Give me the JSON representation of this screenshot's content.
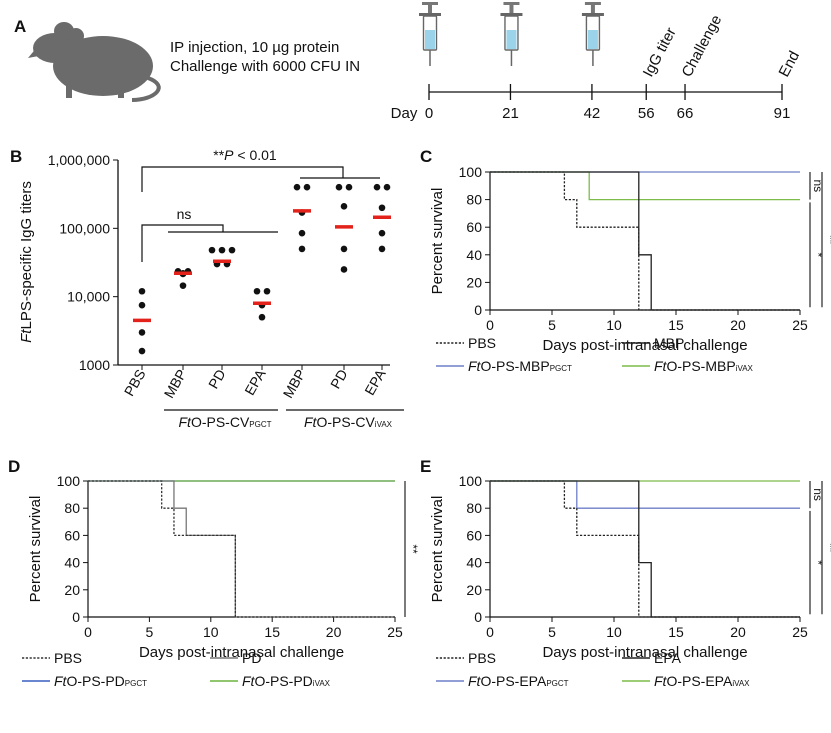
{
  "figure": {
    "panel_a": {
      "letter": "A",
      "protocol_line1": "IP injection, 10 µg protein",
      "protocol_line2": "Challenge with 6000 CFU IN",
      "timeline_label": "Day",
      "days": [
        0,
        21,
        42,
        56,
        66,
        91
      ],
      "injection_days": [
        0,
        21,
        42
      ],
      "events": [
        {
          "day": 56,
          "label": "IgG titer"
        },
        {
          "day": 66,
          "label": "Challenge"
        },
        {
          "day": 91,
          "label": "End"
        }
      ]
    },
    "panel_b": {
      "letter": "B",
      "ylabel_prefix": "Ft",
      "ylabel_rest": "LPS-specific IgG titers",
      "yticks": [
        1000,
        10000,
        100000,
        1000000
      ],
      "ytick_labels": [
        "1000",
        "10,000",
        "100,000",
        "1,000,000"
      ],
      "group_pgct_prefix": "Ft",
      "group_pgct_main": "O-PS-CV",
      "group_pgct_sub": "PGCT",
      "group_ivax_prefix": "Ft",
      "group_ivax_main": "O-PS-CV",
      "group_ivax_sub": "iVAX",
      "sig_label_prefix": "**",
      "sig_label_p": "P",
      "sig_label_rest": " < 0.01",
      "ns_label": "ns"
    },
    "panel_c": {
      "letter": "C",
      "sig_labels": [
        "ns",
        "*",
        "**"
      ]
    },
    "panel_d": {
      "letter": "D",
      "sig_labels": [
        "**"
      ]
    },
    "panel_e": {
      "letter": "E",
      "sig_labels": [
        "ns",
        "*",
        "**"
      ]
    },
    "survival_axes": {
      "xlabel": "Days post-intranasal challenge",
      "ylabel": "Percent survival",
      "xticks": [
        0,
        5,
        10,
        15,
        20,
        25
      ],
      "yticks": [
        0,
        20,
        40,
        60,
        80,
        100
      ]
    }
  },
  "chart_data": [
    {
      "type": "scatter",
      "panel": "B",
      "yscale": "log",
      "ylim": [
        1000,
        1000000
      ],
      "ylabel": "FtLPS-specific IgG titers",
      "categories": [
        "PBS",
        "MBP",
        "PD",
        "EPA",
        "MBP",
        "PD",
        "EPA"
      ],
      "groups": [
        {
          "label": "FtO-PS-CVPGCT",
          "categories": [
            "MBP",
            "PD",
            "EPA"
          ]
        },
        {
          "label": "FtO-PS-CViVAX",
          "categories": [
            "MBP",
            "PD",
            "EPA"
          ]
        }
      ],
      "points": [
        [
          12000,
          7500,
          3000,
          1600
        ],
        [
          23500,
          23500,
          22000,
          21500,
          14500
        ],
        [
          48000,
          48000,
          48000,
          30000,
          30000
        ],
        [
          12000,
          12000,
          7500,
          5000
        ],
        [
          400000,
          400000,
          170000,
          85000,
          50000
        ],
        [
          400000,
          400000,
          210000,
          50000,
          25000
        ],
        [
          400000,
          400000,
          200000,
          85000,
          50000
        ]
      ],
      "medians": [
        4500,
        22000,
        33000,
        8000,
        180000,
        105000,
        145000
      ],
      "annotations": [
        "**P < 0.01",
        "ns"
      ]
    },
    {
      "type": "line",
      "panel": "C",
      "xlabel": "Days post-intranasal challenge",
      "ylabel": "Percent survival",
      "xlim": [
        0,
        25
      ],
      "ylim": [
        0,
        100
      ],
      "series": [
        {
          "name": "PBS",
          "color": "#222222",
          "dash": "dotted",
          "steps": [
            [
              0,
              100
            ],
            [
              6,
              80
            ],
            [
              7,
              60
            ],
            [
              12,
              0
            ],
            [
              25,
              0
            ]
          ]
        },
        {
          "name": "MBP",
          "color": "#222222",
          "dash": "solid",
          "steps": [
            [
              0,
              100
            ],
            [
              12,
              40
            ],
            [
              13,
              0
            ],
            [
              25,
              0
            ]
          ]
        },
        {
          "name": "FtO-PS-MBPPGCT",
          "color": "#6f7fc8",
          "dash": "solid",
          "steps": [
            [
              0,
              100
            ],
            [
              25,
              100
            ]
          ]
        },
        {
          "name": "FtO-PS-MBPiVAX",
          "color": "#7dbb4a",
          "dash": "solid",
          "steps": [
            [
              0,
              100
            ],
            [
              8,
              80
            ],
            [
              25,
              80
            ]
          ]
        }
      ]
    },
    {
      "type": "line",
      "panel": "D",
      "xlabel": "Days post-intranasal challenge",
      "ylabel": "Percent survival",
      "xlim": [
        0,
        25
      ],
      "ylim": [
        0,
        100
      ],
      "series": [
        {
          "name": "PBS",
          "color": "#333333",
          "dash": "dotted",
          "steps": [
            [
              0,
              100
            ],
            [
              6,
              80
            ],
            [
              7,
              60
            ],
            [
              12,
              0
            ],
            [
              25,
              0
            ]
          ]
        },
        {
          "name": "PD",
          "color": "#777777",
          "dash": "solid",
          "steps": [
            [
              0,
              100
            ],
            [
              7,
              80
            ],
            [
              8,
              60
            ],
            [
              12,
              0
            ],
            [
              25,
              0
            ]
          ]
        },
        {
          "name": "FtO-PS-PDPGCT",
          "color": "#3a5fc0",
          "dash": "solid",
          "steps": [
            [
              0,
              100
            ],
            [
              25,
              100
            ]
          ]
        },
        {
          "name": "FtO-PS-PDiVAX",
          "color": "#6cb33f",
          "dash": "solid",
          "steps": [
            [
              0,
              100
            ],
            [
              25,
              100
            ]
          ]
        }
      ]
    },
    {
      "type": "line",
      "panel": "E",
      "xlabel": "Days post-intranasal challenge",
      "ylabel": "Percent survival",
      "xlim": [
        0,
        25
      ],
      "ylim": [
        0,
        100
      ],
      "series": [
        {
          "name": "PBS",
          "color": "#222222",
          "dash": "dotted",
          "steps": [
            [
              0,
              100
            ],
            [
              6,
              80
            ],
            [
              7,
              60
            ],
            [
              12,
              0
            ],
            [
              25,
              0
            ]
          ]
        },
        {
          "name": "EPA",
          "color": "#222222",
          "dash": "solid",
          "steps": [
            [
              0,
              100
            ],
            [
              12,
              40
            ],
            [
              13,
              0
            ],
            [
              25,
              0
            ]
          ]
        },
        {
          "name": "FtO-PS-EPAPGCT",
          "color": "#6f7fc8",
          "dash": "solid",
          "steps": [
            [
              0,
              100
            ],
            [
              7,
              80
            ],
            [
              25,
              80
            ]
          ]
        },
        {
          "name": "FtO-PS-EPAiVAX",
          "color": "#7dbb4a",
          "dash": "solid",
          "steps": [
            [
              0,
              100
            ],
            [
              25,
              100
            ]
          ]
        }
      ]
    }
  ]
}
